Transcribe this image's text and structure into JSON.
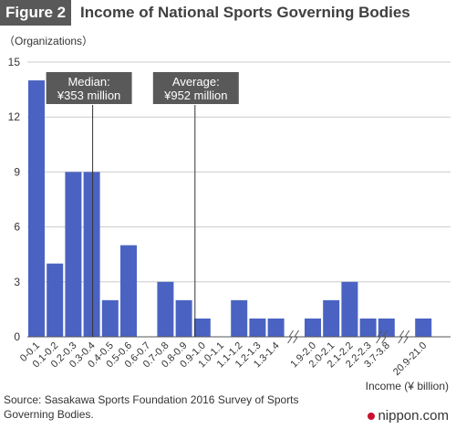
{
  "figure_tag": "Figure 2",
  "title": "Income of National Sports Governing Bodies",
  "source": "Source: Sasakawa Sports Foundation 2016 Survey of Sports Governing Bodies.",
  "brand": "nippon.com",
  "colors": {
    "bar": "#4a63c2",
    "annotation_bg": "#595959",
    "grid": "#cccccc"
  },
  "chart_data": {
    "type": "bar",
    "ylabel": "（Organizations）",
    "xlabel": "Income (¥ billion)",
    "ylim": [
      0,
      15
    ],
    "yticks": [
      0,
      3,
      6,
      9,
      12,
      15
    ],
    "grid": true,
    "categories": [
      "0-0.1",
      "0.1-0.2",
      "0.2-0.3",
      "0.3-0.4",
      "0.4-0.5",
      "0.5-0.6",
      "0.6-0.7",
      "0.7-0.8",
      "0.8-0.9",
      "0.9-1.0",
      "1.0-1.1",
      "1.1-1.2",
      "1.2-1.3",
      "1.3-1.4",
      "1.9-2.0",
      "2.0-2.1",
      "2.1-2.2",
      "2.2-2.3",
      "3.7-3.8",
      "20.9-21.0"
    ],
    "values": [
      14,
      4,
      9,
      9,
      2,
      5,
      0,
      3,
      2,
      1,
      0,
      2,
      1,
      1,
      1,
      2,
      3,
      1,
      1,
      1
    ],
    "axis_breaks_after": [
      "1.3-1.4",
      "2.2-2.3",
      "3.7-3.8"
    ],
    "annotations": [
      {
        "label": "Median:",
        "value": "¥353 million",
        "at_category": "0.3-0.4"
      },
      {
        "label": "Average:",
        "value": "¥952 million",
        "at_category": "0.9-1.0"
      }
    ]
  }
}
